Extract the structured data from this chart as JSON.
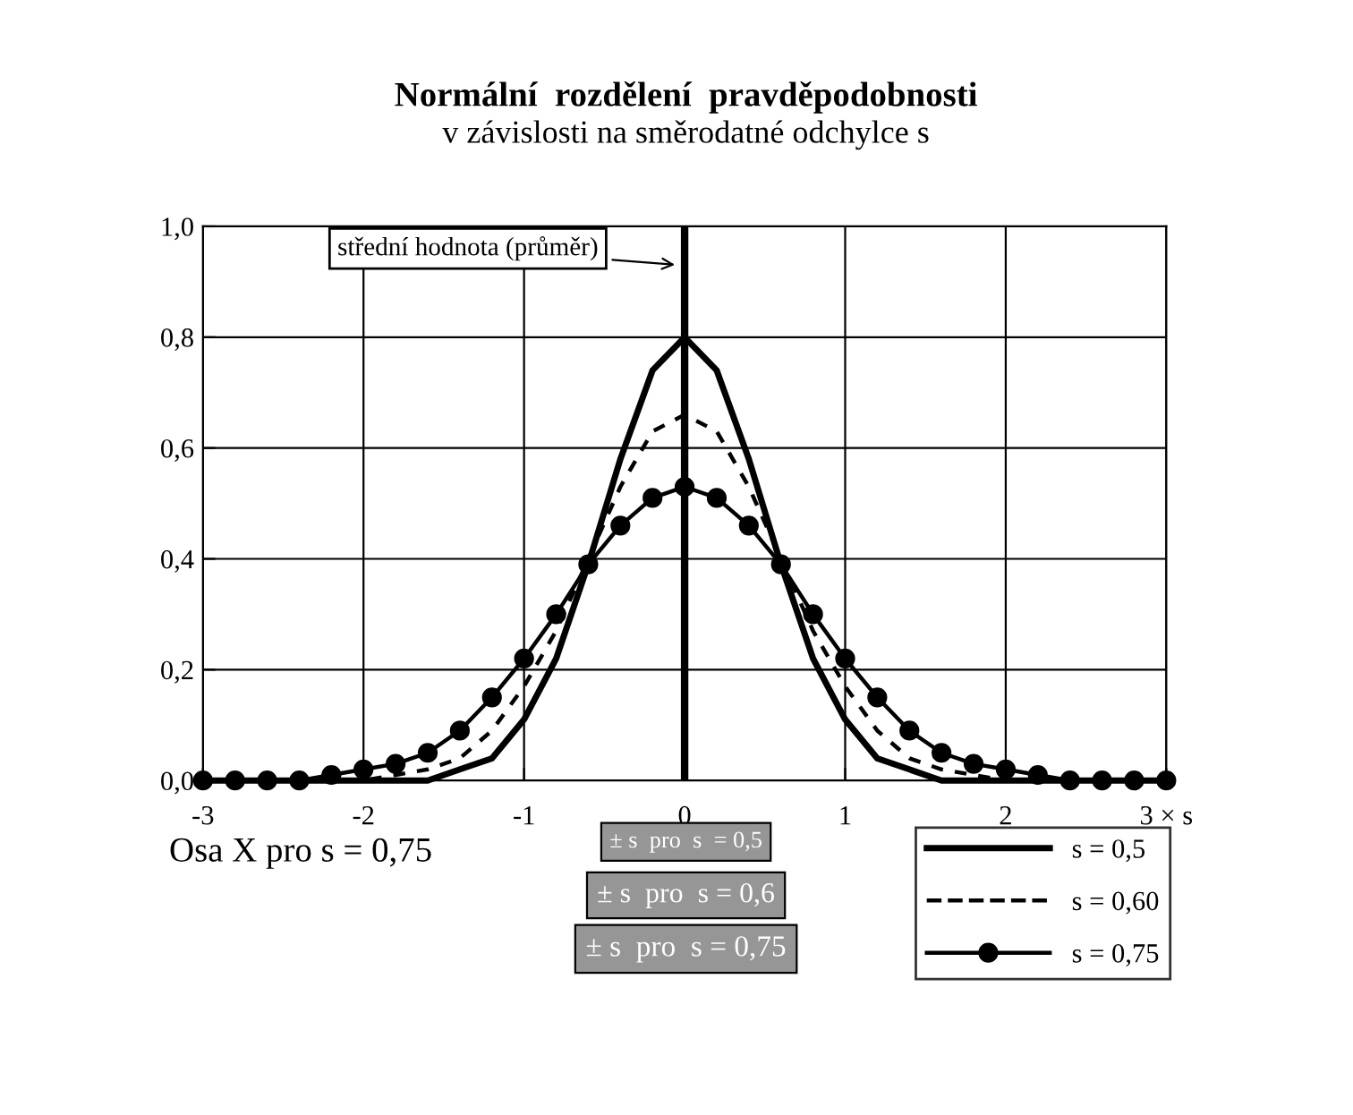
{
  "chart_data": {
    "type": "line",
    "title": "Normální  rozdělení  pravděpodobnosti",
    "subtitle": "v závislosti na směrodatné odchylce s",
    "x": [
      -3.0,
      -2.8,
      -2.6,
      -2.4,
      -2.2,
      -2.0,
      -1.8,
      -1.6,
      -1.4,
      -1.2,
      -1.0,
      -0.8,
      -0.6,
      -0.4,
      -0.2,
      0.0,
      0.2,
      0.4,
      0.6,
      0.8,
      1.0,
      1.2,
      1.4,
      1.6,
      1.8,
      2.0,
      2.2,
      2.4,
      2.6,
      2.8,
      3.0
    ],
    "series": [
      {
        "name": "s = 0,5",
        "color": "#000000",
        "line_style": "solid",
        "marker": "none",
        "values": [
          0,
          0,
          0,
          0,
          0,
          0,
          0,
          0,
          0.02,
          0.04,
          0.11,
          0.22,
          0.39,
          0.58,
          0.74,
          0.8,
          0.74,
          0.58,
          0.39,
          0.22,
          0.11,
          0.04,
          0.02,
          0,
          0,
          0,
          0,
          0,
          0,
          0,
          0
        ]
      },
      {
        "name": "s = 0,60",
        "color": "#000000",
        "line_style": "dashed",
        "marker": "none",
        "values": [
          0,
          0,
          0,
          0,
          0,
          0,
          0.01,
          0.02,
          0.04,
          0.09,
          0.17,
          0.27,
          0.4,
          0.53,
          0.63,
          0.66,
          0.63,
          0.53,
          0.4,
          0.27,
          0.17,
          0.09,
          0.04,
          0.02,
          0.01,
          0,
          0,
          0,
          0,
          0,
          0
        ]
      },
      {
        "name": "s = 0,75",
        "color": "#000000",
        "line_style": "solid",
        "marker": "circle",
        "values": [
          0,
          0,
          0,
          0,
          0.01,
          0.02,
          0.03,
          0.05,
          0.09,
          0.15,
          0.22,
          0.3,
          0.39,
          0.46,
          0.51,
          0.53,
          0.51,
          0.46,
          0.39,
          0.3,
          0.22,
          0.15,
          0.09,
          0.05,
          0.03,
          0.02,
          0.01,
          0,
          0,
          0,
          0
        ]
      }
    ],
    "xlim": [
      -3,
      3
    ],
    "xticks": [
      -3,
      -2,
      -1,
      0,
      1,
      2,
      {
        "value": 3,
        "label": "3 × s"
      }
    ],
    "ylim": [
      0,
      1
    ],
    "yticks": [
      {
        "value": 0,
        "label": "0,0"
      },
      {
        "value": 0.2,
        "label": "0,2"
      },
      {
        "value": 0.4,
        "label": "0,4"
      },
      {
        "value": 0.6,
        "label": "0,6"
      },
      {
        "value": 0.8,
        "label": "0,8"
      },
      {
        "value": 1.0,
        "label": "1,0"
      }
    ],
    "grid": true,
    "legend": "bottom right",
    "ref_lines": [
      {
        "axis": "x",
        "value": 0,
        "color": "#000000",
        "line_style": "solid"
      }
    ],
    "annotations": [
      "střední hodnota (průměr)",
      "Osa X pro s = 0,75",
      "± s  pro  s  = 0,5",
      "± s  pro  s = 0,6",
      "± s  pro  s = 0,75"
    ]
  }
}
